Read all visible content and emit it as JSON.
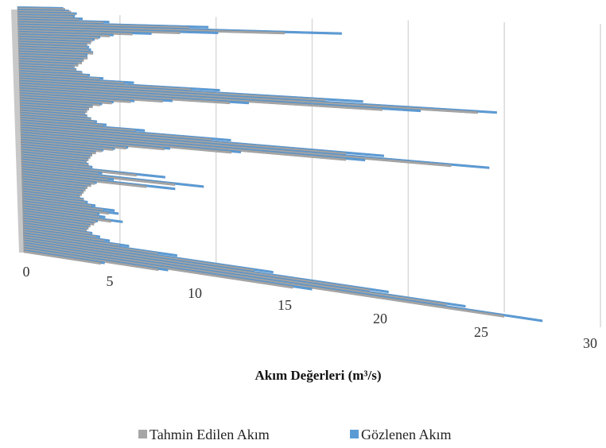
{
  "chart_data": {
    "type": "bar",
    "chart_style": "3d-bar",
    "title": "",
    "xlabel": "Akım Değerleri (m³/s)",
    "ylabel": "",
    "xlim": [
      0,
      30
    ],
    "x_ticks": [
      "0",
      "5",
      "10",
      "15",
      "20",
      "25",
      "30"
    ],
    "grid": true,
    "legend_position": "bottom",
    "series": [
      {
        "name": "Tahmin Edilen Akım",
        "color": "#a6a6a6",
        "values": [
          2.5,
          2.8,
          3.0,
          2.9,
          3.2,
          4.5,
          9.0,
          14.0,
          8.5,
          6.0,
          4.8,
          4.2,
          3.9,
          3.8,
          3.6,
          3.6,
          3.7,
          3.9,
          3.5,
          3.6,
          3.4,
          3.3,
          3.1,
          2.9,
          3.0,
          3.3,
          3.6,
          4.2,
          5.5,
          9.0,
          16.0,
          24.0,
          19.0,
          11.0,
          7.5,
          5.8,
          4.8,
          4.2,
          3.8,
          3.6,
          3.5,
          3.4,
          3.5,
          3.7,
          3.9,
          4.3,
          6.0,
          10.0,
          17.0,
          22.5,
          17.0,
          11.0,
          7.5,
          5.5,
          4.8,
          4.2,
          3.9,
          3.7,
          3.6,
          3.5,
          3.4,
          3.5,
          3.6,
          6.0,
          4.0,
          8.0,
          4.5,
          6.5,
          3.8,
          3.6,
          3.4,
          3.3,
          3.2,
          3.1,
          3.0,
          3.2,
          3.3,
          3.6,
          4.2,
          4.5,
          3.9,
          4.0,
          4.6,
          3.8,
          3.7,
          3.5,
          3.4,
          3.3,
          3.5,
          3.8,
          4.2,
          5.0,
          7.0,
          12.0,
          18.0,
          22.0,
          25.0,
          14.0,
          7.0,
          4.0
        ]
      },
      {
        "name": "Gözlenen Akım",
        "color": "#5b9bd5",
        "values": [
          2.4,
          2.7,
          3.1,
          3.0,
          3.4,
          4.8,
          10.0,
          17.0,
          10.5,
          7.0,
          5.0,
          4.3,
          4.0,
          3.8,
          3.6,
          3.7,
          3.8,
          3.9,
          3.6,
          3.6,
          3.4,
          3.3,
          3.1,
          2.9,
          3.0,
          3.3,
          3.7,
          4.4,
          6.0,
          10.5,
          18.0,
          25.0,
          21.0,
          12.0,
          8.0,
          6.0,
          4.9,
          4.3,
          3.8,
          3.6,
          3.5,
          3.4,
          3.5,
          3.7,
          4.0,
          4.5,
          6.5,
          11.0,
          19.0,
          24.5,
          18.0,
          11.5,
          7.8,
          5.6,
          4.9,
          4.3,
          3.9,
          3.7,
          3.6,
          3.5,
          3.4,
          3.5,
          3.7,
          7.5,
          4.2,
          9.5,
          4.8,
          8.0,
          3.9,
          3.6,
          3.4,
          3.3,
          3.2,
          3.1,
          3.0,
          3.2,
          3.4,
          3.8,
          4.8,
          5.0,
          4.0,
          4.3,
          5.2,
          3.9,
          3.7,
          3.5,
          3.4,
          3.3,
          3.6,
          4.0,
          4.5,
          5.5,
          8.0,
          13.0,
          19.0,
          23.0,
          27.0,
          15.0,
          7.5,
          4.2
        ]
      }
    ]
  }
}
